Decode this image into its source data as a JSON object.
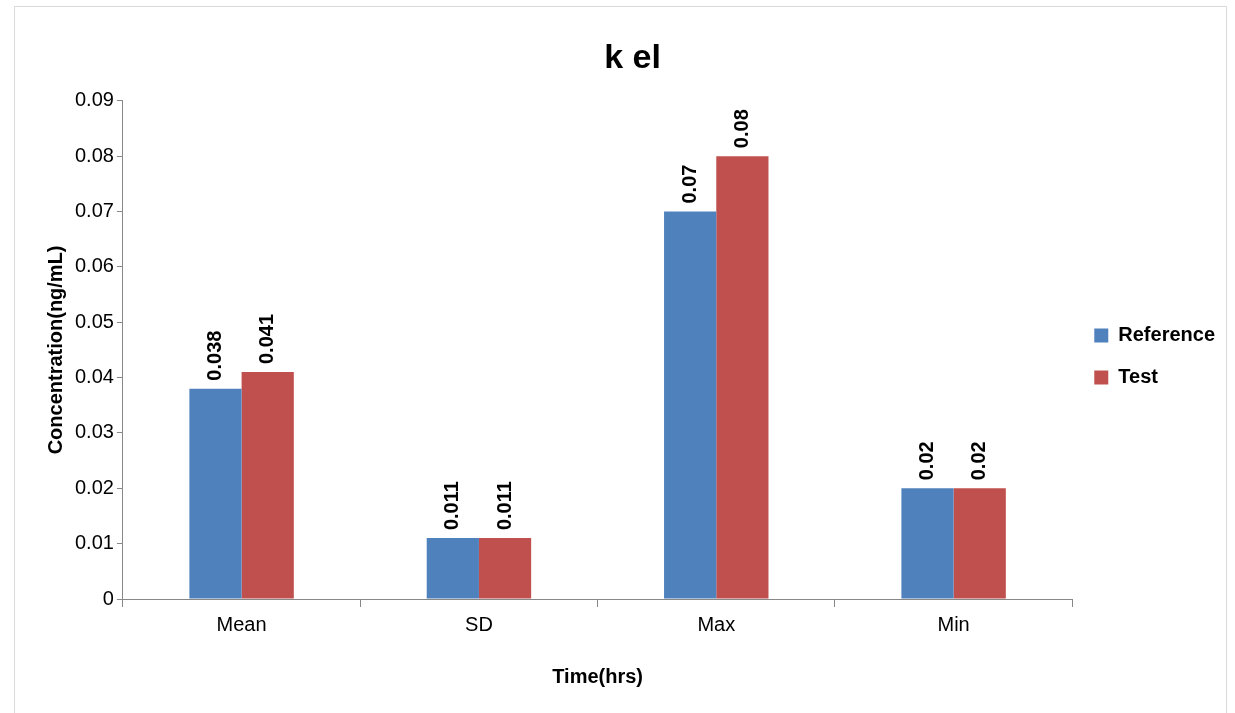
{
  "chart_data": {
    "type": "bar",
    "title": "k el",
    "xlabel": "Time(hrs)",
    "ylabel": "Concentration(ng/mL)",
    "categories": [
      "Mean",
      "SD",
      "Max",
      "Min"
    ],
    "series": [
      {
        "name": "Reference",
        "color": "#4f81bd",
        "values": [
          0.038,
          0.011,
          0.07,
          0.02
        ]
      },
      {
        "name": "Test",
        "color": "#c0504d",
        "values": [
          0.041,
          0.011,
          0.08,
          0.02
        ]
      }
    ],
    "ylim": [
      0,
      0.09
    ],
    "yticks": [
      0,
      0.01,
      0.02,
      0.03,
      0.04,
      0.05,
      0.06,
      0.07,
      0.08,
      0.09
    ],
    "grid": false,
    "legend": "right",
    "data_labels": true
  }
}
